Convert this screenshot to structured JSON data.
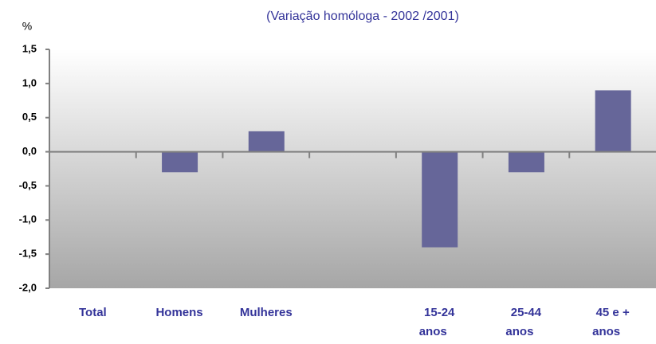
{
  "chart_data": {
    "type": "bar",
    "title": "(Variação homóloga  -  2002 /2001)",
    "y_label": "%",
    "categories": [
      "Total",
      "Homens",
      "Mulheres",
      null,
      "15-24 anos",
      "25-44 anos",
      "45 e + anos"
    ],
    "values": [
      0,
      -0.3,
      0.3,
      null,
      -1.4,
      -0.3,
      0.9
    ],
    "color": "#666699",
    "ylim": [
      -2,
      1.5
    ],
    "yticks": [
      {
        "value": 1.5,
        "label": "1,5"
      },
      {
        "value": 1,
        "label": "1,0"
      },
      {
        "value": 0.5,
        "label": "0,5"
      },
      {
        "value": 0,
        "label": "0,0"
      },
      {
        "value": -0.5,
        "label": "-0,5"
      },
      {
        "value": -1,
        "label": "-1,0"
      },
      {
        "value": -1.5,
        "label": "-1,5"
      },
      {
        "value": -2,
        "label": "-2,0"
      }
    ]
  }
}
